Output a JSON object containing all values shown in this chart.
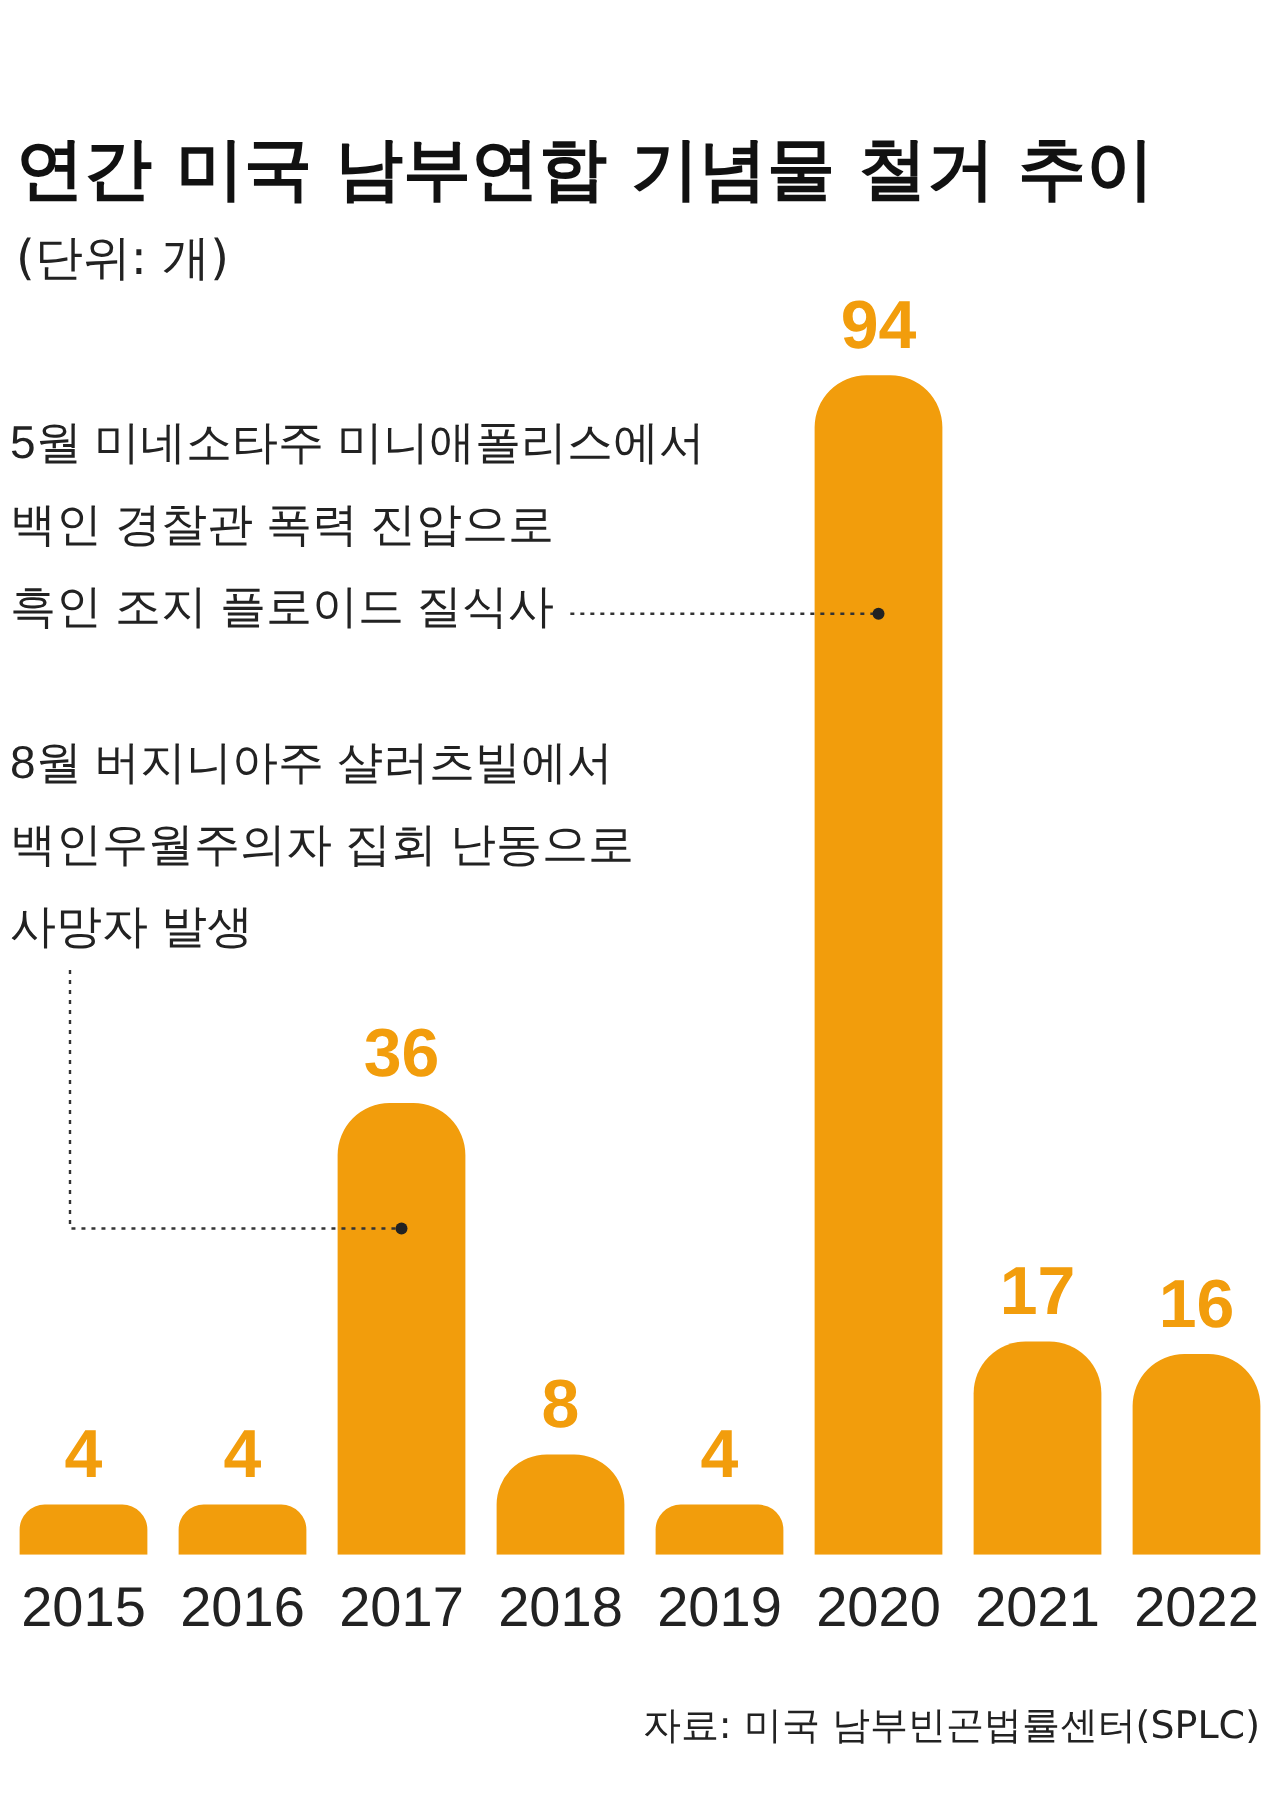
{
  "chart_data": {
    "type": "bar",
    "title": "연간 미국 남부연합 기념물 철거 추이",
    "subtitle": "(단위: 개)",
    "categories": [
      "2015",
      "2016",
      "2017",
      "2018",
      "2019",
      "2020",
      "2021",
      "2022"
    ],
    "values": [
      4,
      4,
      36,
      8,
      4,
      94,
      17,
      16
    ],
    "color": "#f29d0c",
    "data_labels": true,
    "annotations": [
      {
        "text": "5월 미네소타주 미니애폴리스에서\n백인 경찰관 폭력 진압으로\n흑인 조지 플로이드 질식사",
        "x": "2020",
        "y": 75
      },
      {
        "text": "8월 버지니아주 샬러츠빌에서\n백인우월주의자 집회 난동으로\n사망자 발생",
        "x": "2017",
        "y": 26
      },
      "자료: 미국 남부빈곤법률센터(SPLC)"
    ]
  }
}
